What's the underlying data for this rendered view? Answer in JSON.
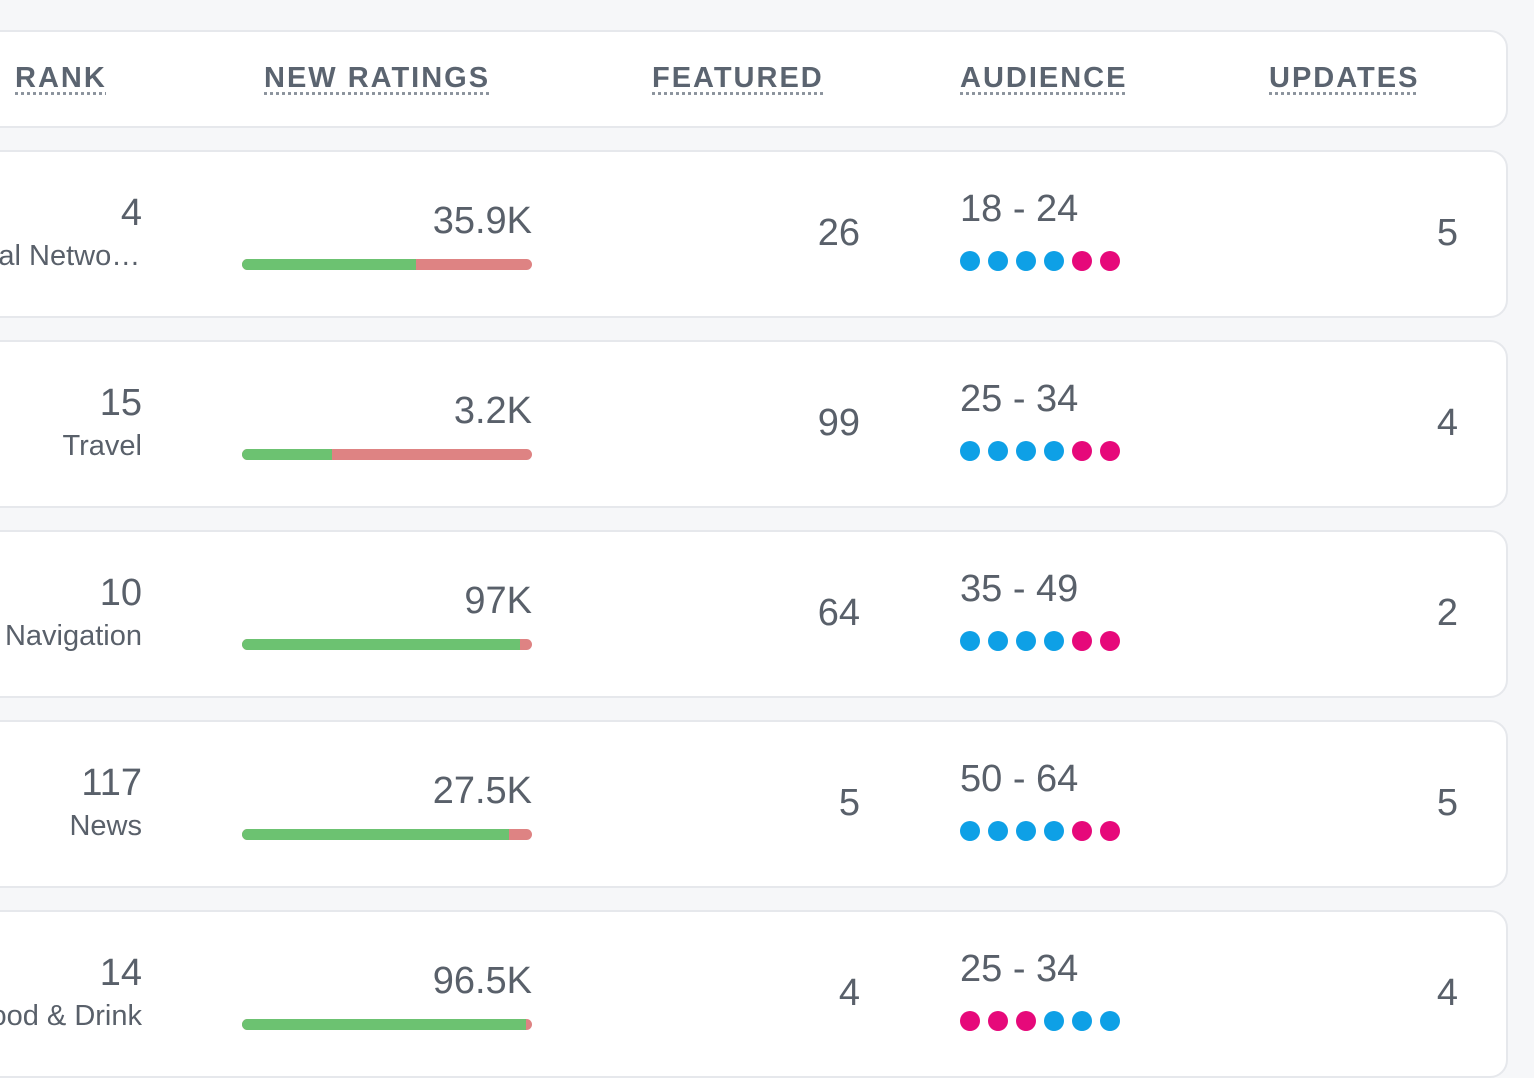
{
  "colors": {
    "bar_positive": "#6cc271",
    "bar_negative": "#de8383",
    "dot_blue": "#0ea0e6",
    "dot_pink": "#e6097a"
  },
  "columns": {
    "rank": "RANK",
    "new_ratings": "NEW RATINGS",
    "featured": "FEATURED",
    "audience": "AUDIENCE",
    "updates": "UPDATES"
  },
  "rows": [
    {
      "rank": "4",
      "category": "Social Networking",
      "new_ratings": "35.9K",
      "positive_fraction": 0.6,
      "featured": "26",
      "audience": "18 - 24",
      "audience_dots": [
        "blue",
        "blue",
        "blue",
        "blue",
        "pink",
        "pink"
      ],
      "updates": "5"
    },
    {
      "rank": "15",
      "category": "Travel",
      "new_ratings": "3.2K",
      "positive_fraction": 0.31,
      "featured": "99",
      "audience": "25 - 34",
      "audience_dots": [
        "blue",
        "blue",
        "blue",
        "blue",
        "pink",
        "pink"
      ],
      "updates": "4"
    },
    {
      "rank": "10",
      "category": "Navigation",
      "new_ratings": "97K",
      "positive_fraction": 0.96,
      "featured": "64",
      "audience": "35 - 49",
      "audience_dots": [
        "blue",
        "blue",
        "blue",
        "blue",
        "pink",
        "pink"
      ],
      "updates": "2"
    },
    {
      "rank": "117",
      "category": "News",
      "new_ratings": "27.5K",
      "positive_fraction": 0.92,
      "featured": "5",
      "audience": "50 - 64",
      "audience_dots": [
        "blue",
        "blue",
        "blue",
        "blue",
        "pink",
        "pink"
      ],
      "updates": "5"
    },
    {
      "rank": "14",
      "category": "Food & Drink",
      "new_ratings": "96.5K",
      "positive_fraction": 0.98,
      "featured": "4",
      "audience": "25 - 34",
      "audience_dots": [
        "pink",
        "pink",
        "pink",
        "blue",
        "blue",
        "blue"
      ],
      "updates": "4"
    }
  ]
}
